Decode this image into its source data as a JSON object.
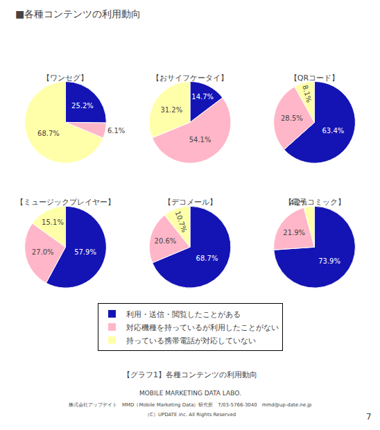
{
  "title": "■各種コンテンツの利用動向",
  "legend": "bottom",
  "annotations": [
    "【グラフ1】各種コンテンツの利用動向",
    "MOBILE MARKETING DATA LABO.",
    "株式会社アップデイト　MMD（Mobile Marketing Data）研究所　T/03-5766-3040　mmd@up-date.ne.jp",
    "（C）UPDATE inc. All Rights Reserved",
    "7"
  ],
  "chart_data": [
    {
      "type": "pie",
      "title": "【ワンセグ】",
      "categories": [
        "利用・送信・閲覧したことがある",
        "対応機種を持っているが利用したことがない",
        "持っている携帯電話が対応していない"
      ],
      "values": [
        25.2,
        6.1,
        68.7
      ],
      "value_labels": [
        "25.2%",
        "6.1%",
        "68.7%"
      ],
      "colors": [
        "#1414b4",
        "#ffb6c8",
        "#ffffaa"
      ],
      "data_labels": true
    },
    {
      "type": "pie",
      "title": "【おサイフケータイ】",
      "categories": [
        "利用・送信・閲覧したことがある",
        "対応機種を持っているが利用したことがない",
        "持っている携帯電話が対応していない"
      ],
      "values": [
        14.7,
        54.1,
        31.2
      ],
      "value_labels": [
        "14.7%",
        "54.1%",
        "31.2%"
      ],
      "colors": [
        "#1414b4",
        "#ffb6c8",
        "#ffffaa"
      ],
      "data_labels": true
    },
    {
      "type": "pie",
      "title": "【QRコード】",
      "categories": [
        "利用・送信・閲覧したことがある",
        "対応機種を持っているが利用したことがない",
        "持っている携帯電話が対応していない"
      ],
      "values": [
        63.4,
        28.5,
        8.1
      ],
      "value_labels": [
        "63.4%",
        "28.5%",
        "8.1%"
      ],
      "colors": [
        "#1414b4",
        "#ffb6c8",
        "#ffffaa"
      ],
      "data_labels": true
    },
    {
      "type": "pie",
      "title": "【ミュージックプレイヤー】",
      "categories": [
        "利用・送信・閲覧したことがある",
        "対応機種を持っているが利用したことがない",
        "持っている携帯電話が対応していない"
      ],
      "values": [
        57.9,
        27.0,
        15.1
      ],
      "value_labels": [
        "57.9%",
        "27.0%",
        "15.1%"
      ],
      "colors": [
        "#1414b4",
        "#ffb6c8",
        "#ffffaa"
      ],
      "data_labels": true
    },
    {
      "type": "pie",
      "title": "【デコメール】",
      "categories": [
        "利用・送信・閲覧したことがある",
        "対応機種を持っているが利用したことがない",
        "持っている携帯電話が対応していない"
      ],
      "values": [
        68.7,
        20.6,
        10.7
      ],
      "value_labels": [
        "68.7%",
        "20.6%",
        "10.7%"
      ],
      "colors": [
        "#1414b4",
        "#ffb6c8",
        "#ffffaa"
      ],
      "data_labels": true
    },
    {
      "type": "pie",
      "title": "【電子コミック】",
      "categories": [
        "利用・送信・閲覧したことがある",
        "対応機種を持っているが利用したことがない",
        "持っている携帯電話が対応していない"
      ],
      "values": [
        73.9,
        21.9,
        4.2
      ],
      "value_labels": [
        "73.9%",
        "21.9%",
        "4.2%"
      ],
      "colors": [
        "#1414b4",
        "#ffb6c8",
        "#ffffaa"
      ],
      "data_labels": true
    }
  ]
}
